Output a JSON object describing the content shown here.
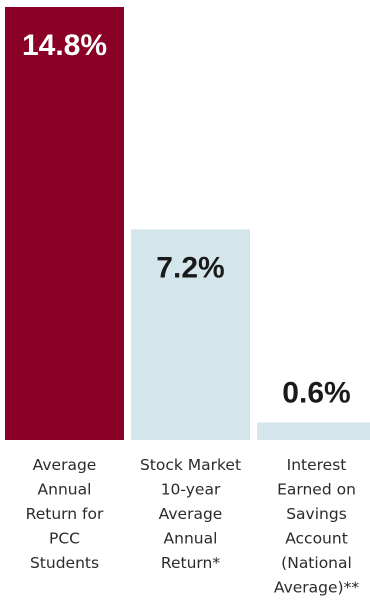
{
  "chart_data": {
    "type": "bar",
    "categories": [
      [
        "Average",
        "Annual",
        "Return for",
        "PCC",
        "Students"
      ],
      [
        "Stock Market",
        "10-year",
        "Average",
        "Annual",
        "Return*"
      ],
      [
        "Interest",
        "Earned on",
        "Savings",
        "Account",
        "(National",
        "Average)**"
      ]
    ],
    "values": [
      14.8,
      7.2,
      0.6
    ],
    "value_labels": [
      "14.8%",
      "7.2%",
      "0.6%"
    ],
    "ylim": [
      0,
      14.8
    ],
    "grid": false,
    "legend": "none",
    "colors": {
      "highlight_bar": "#8a0026",
      "other_bars": "#d4e6ec",
      "highlight_text": "#ffffff",
      "other_text": "#1a1a1a",
      "label_text": "#2b2b2b"
    }
  }
}
